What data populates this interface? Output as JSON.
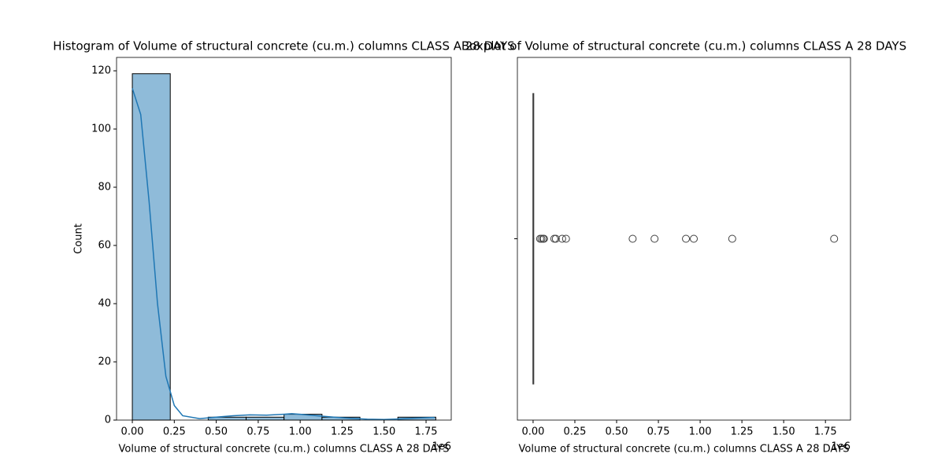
{
  "chart_data": [
    {
      "type": "histogram",
      "title": "Histogram of Volume of structural concrete (cu.m.) columns CLASS A 28 DAYS",
      "x_label": "Volume of structural concrete (cu.m.) columns CLASS A 28 DAYS",
      "y_label": "Count",
      "x_offset_label": "1e6",
      "bins": [
        0,
        0.226,
        0.452,
        0.678,
        0.904,
        1.13,
        1.356,
        1.582,
        1.808
      ],
      "values": [
        119,
        0,
        1,
        1,
        2,
        1,
        0,
        1
      ],
      "color": "#8fbbd9",
      "edge_color": "#000000",
      "kde": {
        "x": [
          0,
          0.05,
          0.1,
          0.15,
          0.2,
          0.25,
          0.3,
          0.4,
          0.5,
          0.6,
          0.7,
          0.8,
          0.9,
          0.95,
          1.0,
          1.1,
          1.2,
          1.3,
          1.4,
          1.5,
          1.6,
          1.7,
          1.8
        ],
        "values": [
          114,
          105,
          75,
          40,
          15,
          5,
          1.5,
          0.5,
          1,
          1.5,
          1.8,
          1.7,
          2,
          2.2,
          2,
          1.5,
          1,
          0.6,
          0.3,
          0.2,
          0.4,
          0.7,
          0.9
        ],
        "color": "#1f77b4"
      },
      "xlim": [
        -0.094,
        1.9
      ],
      "ylim": [
        0,
        124.6
      ],
      "xticks": [
        {
          "value": 0,
          "label": "0.00"
        },
        {
          "value": 0.25,
          "label": "0.25"
        },
        {
          "value": 0.5,
          "label": "0.50"
        },
        {
          "value": 0.75,
          "label": "0.75"
        },
        {
          "value": 1,
          "label": "1.00"
        },
        {
          "value": 1.25,
          "label": "1.25"
        },
        {
          "value": 1.5,
          "label": "1.50"
        },
        {
          "value": 1.75,
          "label": "1.75"
        }
      ],
      "yticks": [
        0,
        20,
        40,
        60,
        80,
        100,
        120
      ]
    },
    {
      "type": "box",
      "title": "Boxplot of Volume of structural concrete (cu.m.) columns CLASS A 28 DAYS",
      "x_label": "Volume of structural concrete (cu.m.) columns CLASS A 28 DAYS",
      "x_offset_label": "1e6",
      "box": {
        "min": 0,
        "q1": 0,
        "median": 0.001,
        "q3": 0.003,
        "max": 0.007
      },
      "outliers": [
        0.042,
        0.05,
        0.06,
        0.065,
        0.127,
        0.136,
        0.174,
        0.197,
        0.596,
        0.727,
        0.915,
        0.962,
        1.192,
        1.802
      ],
      "color": "#3f3f3f",
      "xlim": [
        -0.094,
        1.9
      ],
      "xticks": [
        {
          "value": 0,
          "label": "0.00"
        },
        {
          "value": 0.25,
          "label": "0.25"
        },
        {
          "value": 0.5,
          "label": "0.50"
        },
        {
          "value": 0.75,
          "label": "0.75"
        },
        {
          "value": 1,
          "label": "1.00"
        },
        {
          "value": 1.25,
          "label": "1.25"
        },
        {
          "value": 1.5,
          "label": "1.50"
        },
        {
          "value": 1.75,
          "label": "1.75"
        }
      ]
    }
  ]
}
